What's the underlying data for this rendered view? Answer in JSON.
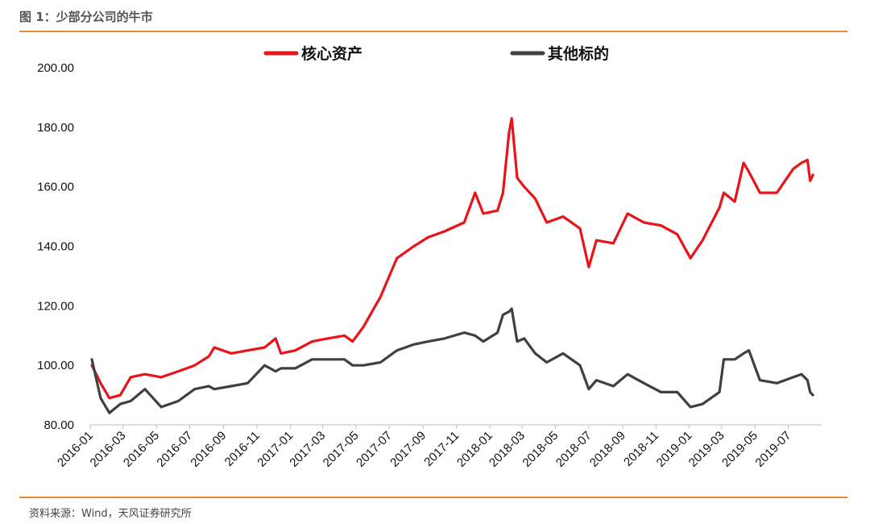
{
  "figure": {
    "title": "图 1：少部分公司的牛市",
    "source": "资料来源：Wind，天风证券研究所",
    "accent_color": "#E8892E"
  },
  "chart_data": {
    "type": "line",
    "title": "",
    "xlabel": "",
    "ylabel": "",
    "ylim": [
      80,
      200
    ],
    "yticks": [
      "80.00",
      "100.00",
      "120.00",
      "140.00",
      "160.00",
      "180.00",
      "200.00"
    ],
    "xticks": [
      "2016-01",
      "2016-03",
      "2016-05",
      "2016-07",
      "2016-09",
      "2016-11",
      "2017-01",
      "2017-03",
      "2017-05",
      "2017-07",
      "2017-09",
      "2017-11",
      "2018-01",
      "2018-03",
      "2018-05",
      "2018-07",
      "2018-09",
      "2018-11",
      "2019-01",
      "2019-03",
      "2019-05",
      "2019-07"
    ],
    "x": [
      "2016-01-04",
      "2016-01-20",
      "2016-02-05",
      "2016-02-25",
      "2016-03-15",
      "2016-04-10",
      "2016-05-10",
      "2016-06-10",
      "2016-07-10",
      "2016-08-05",
      "2016-08-15",
      "2016-09-15",
      "2016-10-15",
      "2016-11-15",
      "2016-12-05",
      "2016-12-15",
      "2017-01-10",
      "2017-02-10",
      "2017-03-10",
      "2017-04-10",
      "2017-04-25",
      "2017-05-15",
      "2017-06-15",
      "2017-07-15",
      "2017-08-15",
      "2017-09-10",
      "2017-10-10",
      "2017-11-15",
      "2017-12-05",
      "2017-12-20",
      "2018-01-15",
      "2018-01-25",
      "2018-02-05",
      "2018-02-10",
      "2018-02-20",
      "2018-03-05",
      "2018-03-25",
      "2018-04-15",
      "2018-05-15",
      "2018-06-15",
      "2018-07-01",
      "2018-07-15",
      "2018-08-15",
      "2018-09-10",
      "2018-10-10",
      "2018-11-10",
      "2018-12-10",
      "2019-01-03",
      "2019-01-25",
      "2019-02-25",
      "2019-03-05",
      "2019-03-25",
      "2019-04-10",
      "2019-04-20",
      "2019-05-10",
      "2019-06-10",
      "2019-06-25",
      "2019-07-10",
      "2019-07-25",
      "2019-08-05",
      "2019-08-10",
      "2019-08-15"
    ],
    "series": [
      {
        "name": "核心资产",
        "color": "#E8141A",
        "values": [
          100,
          94,
          89,
          90,
          96,
          97,
          96,
          98,
          100,
          103,
          106,
          104,
          105,
          106,
          109,
          104,
          105,
          108,
          109,
          110,
          108,
          113,
          123,
          136,
          140,
          143,
          145,
          148,
          158,
          151,
          152,
          158,
          178,
          183,
          163,
          160,
          156,
          148,
          150,
          146,
          133,
          142,
          141,
          151,
          148,
          147,
          144,
          136,
          142,
          153,
          158,
          155,
          168,
          165,
          158,
          158,
          162,
          166,
          168,
          169,
          162,
          164
        ]
      },
      {
        "name": "其他标的",
        "color": "#404040",
        "values": [
          102,
          89,
          84,
          87,
          88,
          92,
          86,
          88,
          92,
          93,
          92,
          93,
          94,
          100,
          98,
          99,
          99,
          102,
          102,
          102,
          100,
          100,
          101,
          105,
          107,
          108,
          109,
          111,
          110,
          108,
          111,
          117,
          118,
          119,
          108,
          109,
          104,
          101,
          104,
          100,
          92,
          95,
          93,
          97,
          94,
          91,
          91,
          86,
          87,
          91,
          102,
          102,
          104,
          105,
          95,
          94,
          95,
          96,
          97,
          95,
          91,
          90
        ]
      }
    ],
    "legend": "top",
    "grid": false
  }
}
